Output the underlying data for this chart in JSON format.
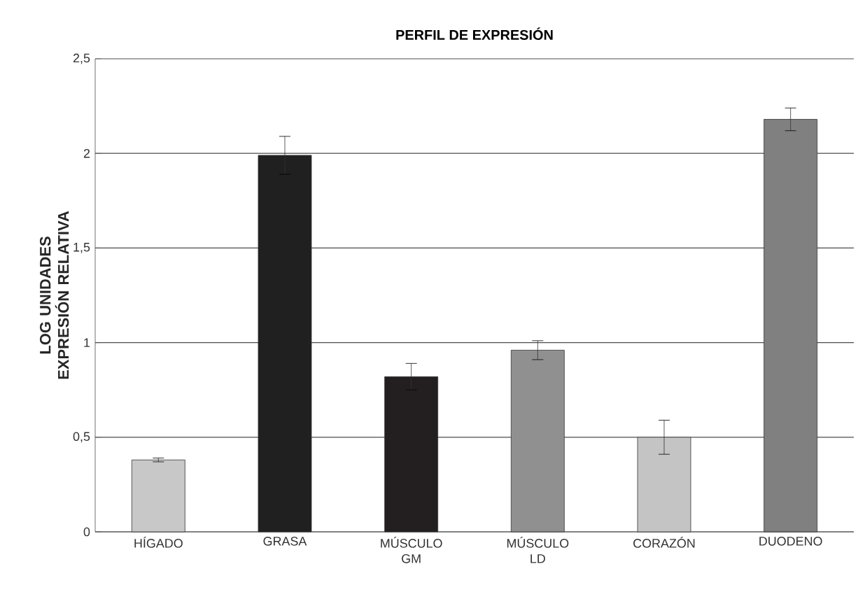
{
  "chart_data": {
    "type": "bar",
    "title": "PERFIL DE EXPRESIÓN",
    "ylabel": "LOG UNIDADES EXPRESIÓN RELATIVA",
    "categories": [
      "HÍGADO",
      "GRASA",
      "MÚSCULO GM",
      "MÚSCULO LD",
      "CORAZÓN",
      "DUODENO"
    ],
    "values": [
      0.38,
      1.99,
      0.82,
      0.96,
      0.5,
      2.18
    ],
    "errors": [
      0.01,
      0.1,
      0.07,
      0.05,
      0.09,
      0.06
    ],
    "colors": [
      "#c8c8c8",
      "#202020",
      "#231f20",
      "#909090",
      "#c4c4c4",
      "#808080"
    ],
    "ylim": [
      0,
      2.5
    ],
    "yticks": [
      0,
      {
        "value": 0.5,
        "label": "0,5"
      },
      1,
      {
        "value": 1.5,
        "label": "1,5"
      },
      2,
      {
        "value": 2.5,
        "label": "2,5"
      }
    ],
    "grid": "y"
  }
}
